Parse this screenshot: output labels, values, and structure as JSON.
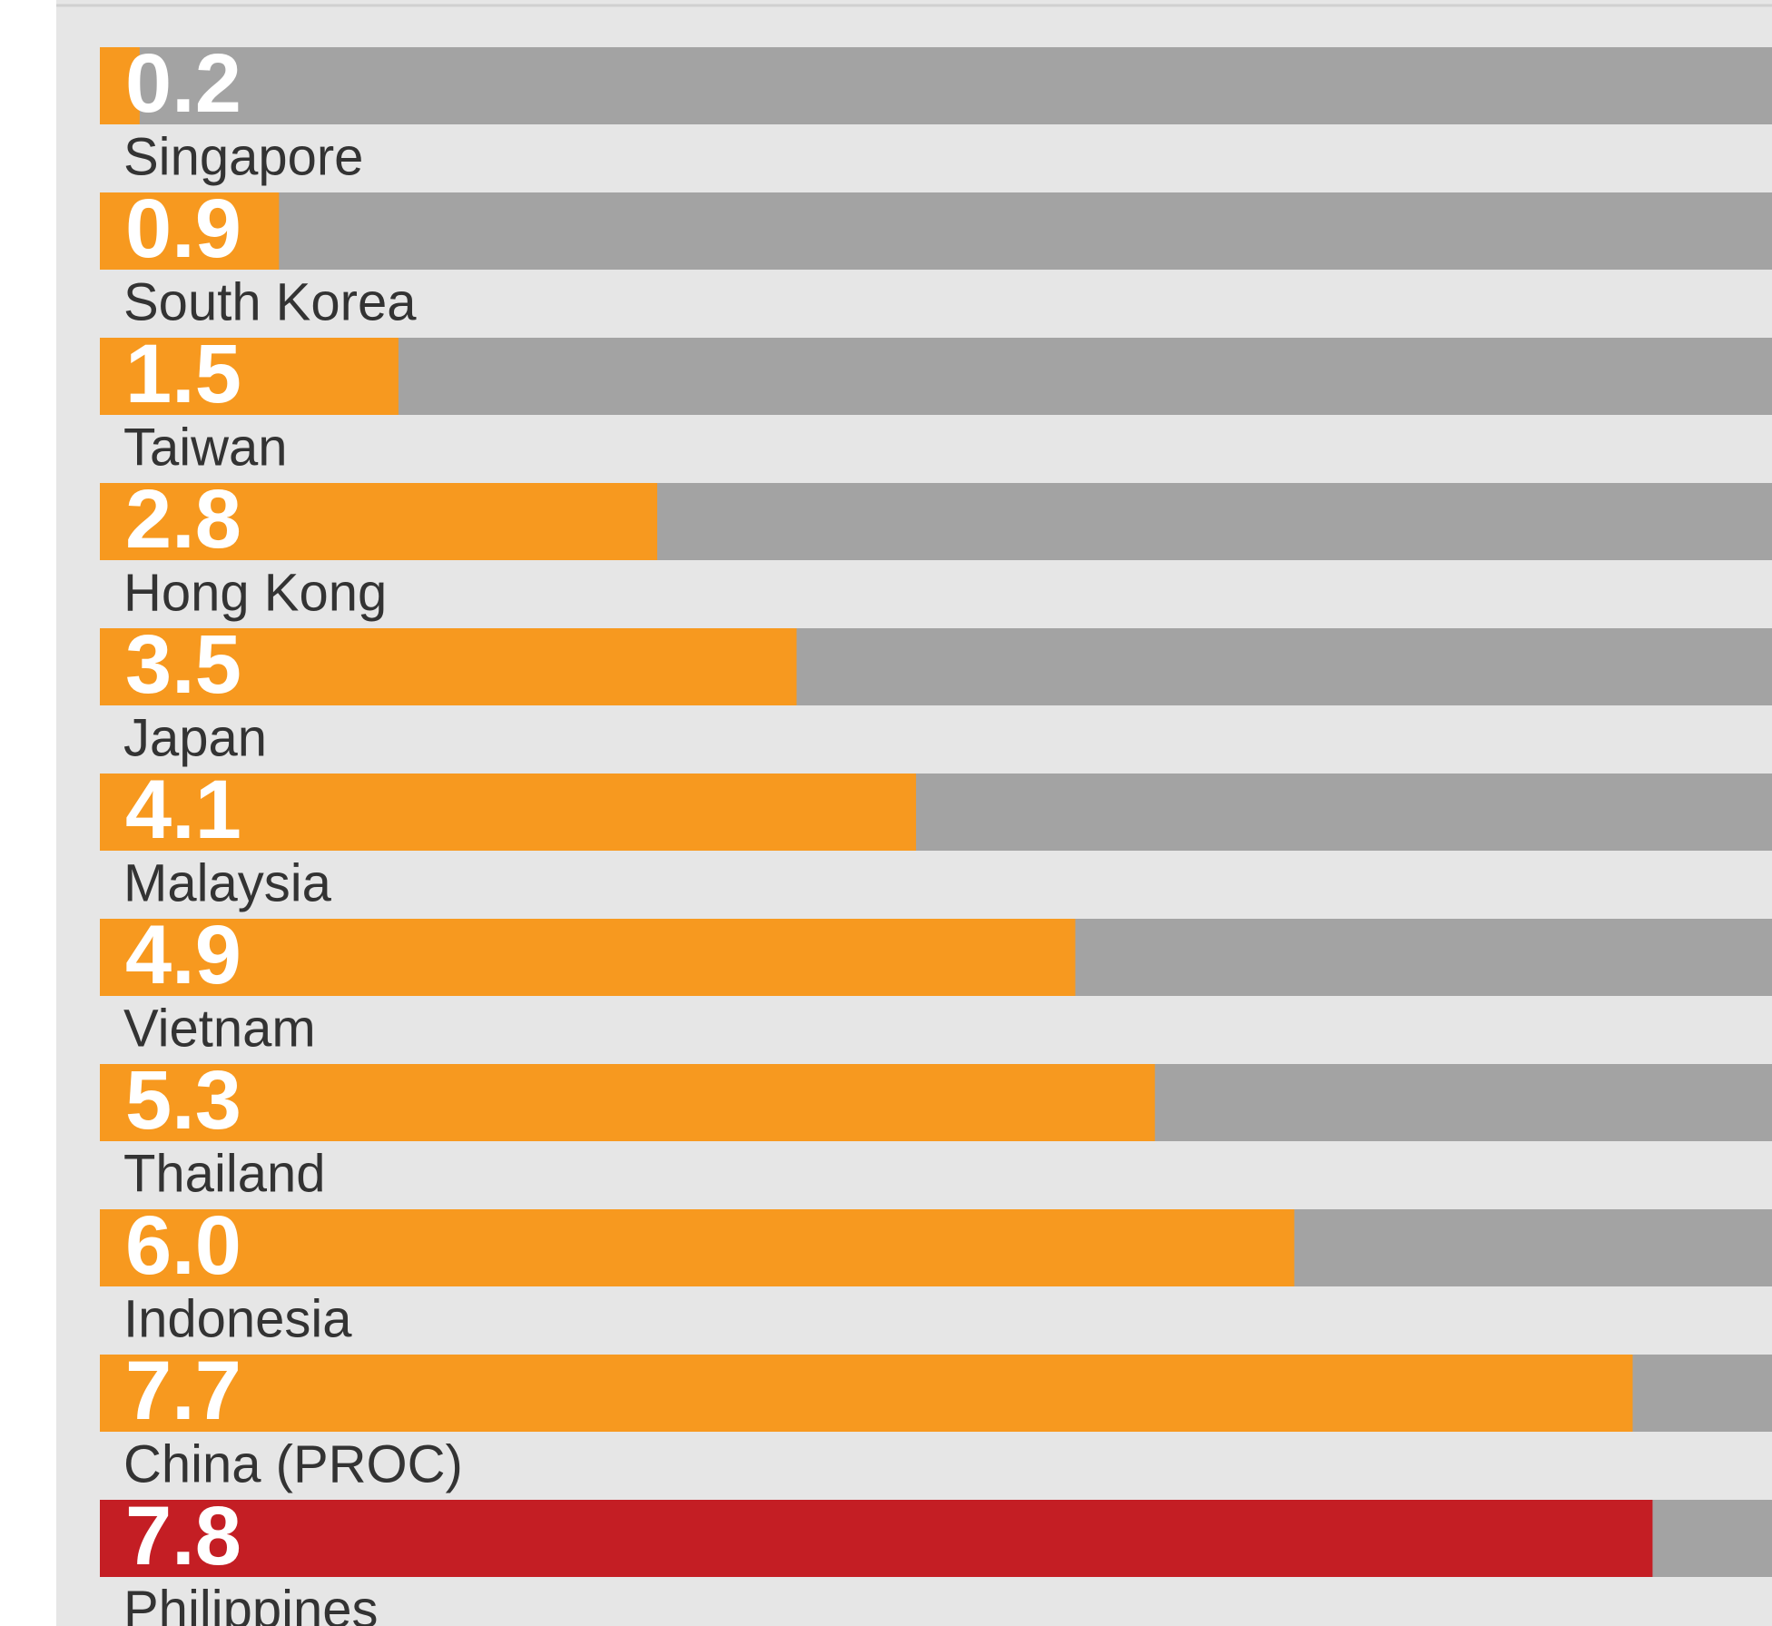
{
  "chart_data": {
    "type": "bar",
    "orientation": "horizontal",
    "categories": [
      "Singapore",
      "South Korea",
      "Taiwan",
      "Hong Kong",
      "Japan",
      "Malaysia",
      "Vietnam",
      "Thailand",
      "Indonesia",
      "China (PROC)",
      "Philippines"
    ],
    "values": [
      0.2,
      0.9,
      1.5,
      2.8,
      3.5,
      4.1,
      4.9,
      5.3,
      6.0,
      7.7,
      7.8
    ],
    "value_labels": [
      "0.2",
      "0.9",
      "1.5",
      "2.8",
      "3.5",
      "4.1",
      "4.9",
      "5.3",
      "6.0",
      "7.7",
      "7.8"
    ],
    "colors": [
      "#f7991f",
      "#f7991f",
      "#f7991f",
      "#f7991f",
      "#f7991f",
      "#f7991f",
      "#f7991f",
      "#f7991f",
      "#f7991f",
      "#f7991f",
      "#c41e24"
    ],
    "track_color": "#a3a3a3",
    "xlim": [
      0,
      8.4
    ]
  }
}
